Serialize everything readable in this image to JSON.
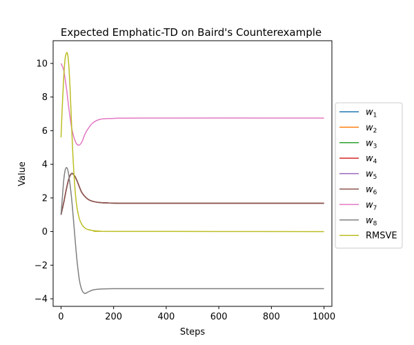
{
  "chart_data": {
    "type": "line",
    "title": "Expected Emphatic-TD on Baird's Counterexample",
    "xlabel": "Steps",
    "ylabel": "Value",
    "xlim": [
      -30,
      1030
    ],
    "ylim": [
      -4.45,
      11.35
    ],
    "xticks": [
      0,
      200,
      400,
      600,
      800,
      1000
    ],
    "xtick_labels": [
      "0",
      "200",
      "400",
      "600",
      "800",
      "1000"
    ],
    "yticks": [
      -4,
      -2,
      0,
      2,
      4,
      6,
      8,
      10
    ],
    "ytick_labels": [
      "−4",
      "−2",
      "0",
      "2",
      "4",
      "6",
      "8",
      "10"
    ],
    "grid": false,
    "legend_placement": "outside-right",
    "series": [
      {
        "name": "w",
        "sub": "1",
        "color": "#1f77b4",
        "x": [
          0,
          10,
          20,
          30,
          40,
          50,
          60,
          70,
          80,
          100,
          120,
          150,
          200,
          300,
          1000
        ],
        "y": [
          1.0,
          1.7,
          2.5,
          3.15,
          3.45,
          3.35,
          3.05,
          2.65,
          2.3,
          1.95,
          1.8,
          1.72,
          1.69,
          1.68,
          1.68
        ]
      },
      {
        "name": "w",
        "sub": "2",
        "color": "#ff7f0e",
        "x": [
          0,
          10,
          20,
          30,
          40,
          50,
          60,
          70,
          80,
          100,
          120,
          150,
          200,
          300,
          1000
        ],
        "y": [
          1.0,
          1.7,
          2.5,
          3.15,
          3.45,
          3.35,
          3.05,
          2.65,
          2.3,
          1.95,
          1.8,
          1.72,
          1.69,
          1.68,
          1.68
        ]
      },
      {
        "name": "w",
        "sub": "3",
        "color": "#2ca02c",
        "x": [
          0,
          10,
          20,
          30,
          40,
          50,
          60,
          70,
          80,
          100,
          120,
          150,
          200,
          300,
          1000
        ],
        "y": [
          1.0,
          1.7,
          2.5,
          3.15,
          3.45,
          3.35,
          3.05,
          2.65,
          2.3,
          1.95,
          1.8,
          1.72,
          1.69,
          1.68,
          1.68
        ]
      },
      {
        "name": "w",
        "sub": "4",
        "color": "#d62728",
        "x": [
          0,
          10,
          20,
          30,
          40,
          50,
          60,
          70,
          80,
          100,
          120,
          150,
          200,
          300,
          1000
        ],
        "y": [
          1.0,
          1.7,
          2.5,
          3.15,
          3.45,
          3.35,
          3.05,
          2.65,
          2.3,
          1.95,
          1.8,
          1.72,
          1.69,
          1.68,
          1.68
        ]
      },
      {
        "name": "w",
        "sub": "5",
        "color": "#9467bd",
        "x": [
          0,
          10,
          20,
          30,
          40,
          50,
          60,
          70,
          80,
          100,
          120,
          150,
          200,
          300,
          1000
        ],
        "y": [
          1.0,
          1.7,
          2.5,
          3.15,
          3.45,
          3.35,
          3.05,
          2.65,
          2.3,
          1.95,
          1.8,
          1.72,
          1.69,
          1.68,
          1.68
        ]
      },
      {
        "name": "w",
        "sub": "6",
        "color": "#8c564b",
        "x": [
          0,
          10,
          20,
          30,
          40,
          50,
          60,
          70,
          80,
          100,
          120,
          150,
          200,
          300,
          1000
        ],
        "y": [
          1.0,
          1.7,
          2.5,
          3.15,
          3.45,
          3.35,
          3.05,
          2.65,
          2.3,
          1.95,
          1.8,
          1.72,
          1.69,
          1.68,
          1.68
        ]
      },
      {
        "name": "w",
        "sub": "7",
        "color": "#e377c2",
        "x": [
          0,
          10,
          20,
          30,
          40,
          50,
          60,
          70,
          80,
          90,
          100,
          120,
          150,
          200,
          300,
          1000
        ],
        "y": [
          10.0,
          9.6,
          8.6,
          7.3,
          6.2,
          5.55,
          5.2,
          5.15,
          5.35,
          5.75,
          6.05,
          6.45,
          6.68,
          6.73,
          6.75,
          6.75
        ]
      },
      {
        "name": "w",
        "sub": "8",
        "color": "#7f7f7f",
        "x": [
          0,
          5,
          10,
          15,
          20,
          25,
          30,
          40,
          50,
          60,
          70,
          80,
          90,
          100,
          120,
          150,
          200,
          300,
          1000
        ],
        "y": [
          1.0,
          2.0,
          3.0,
          3.6,
          3.8,
          3.7,
          3.3,
          2.0,
          0.2,
          -1.6,
          -2.9,
          -3.5,
          -3.68,
          -3.62,
          -3.48,
          -3.42,
          -3.4,
          -3.4,
          -3.4
        ]
      },
      {
        "name": "RMSVE",
        "sub": "",
        "color": "#bcbd22",
        "x": [
          0,
          5,
          10,
          15,
          20,
          25,
          30,
          35,
          40,
          45,
          50,
          55,
          60,
          70,
          80,
          90,
          100,
          120,
          150,
          200,
          1000
        ],
        "y": [
          5.6,
          7.5,
          9.1,
          10.2,
          10.6,
          10.55,
          9.8,
          8.3,
          6.4,
          4.6,
          3.2,
          2.2,
          1.5,
          0.75,
          0.4,
          0.22,
          0.13,
          0.06,
          0.02,
          0.01,
          0.0
        ]
      }
    ]
  }
}
